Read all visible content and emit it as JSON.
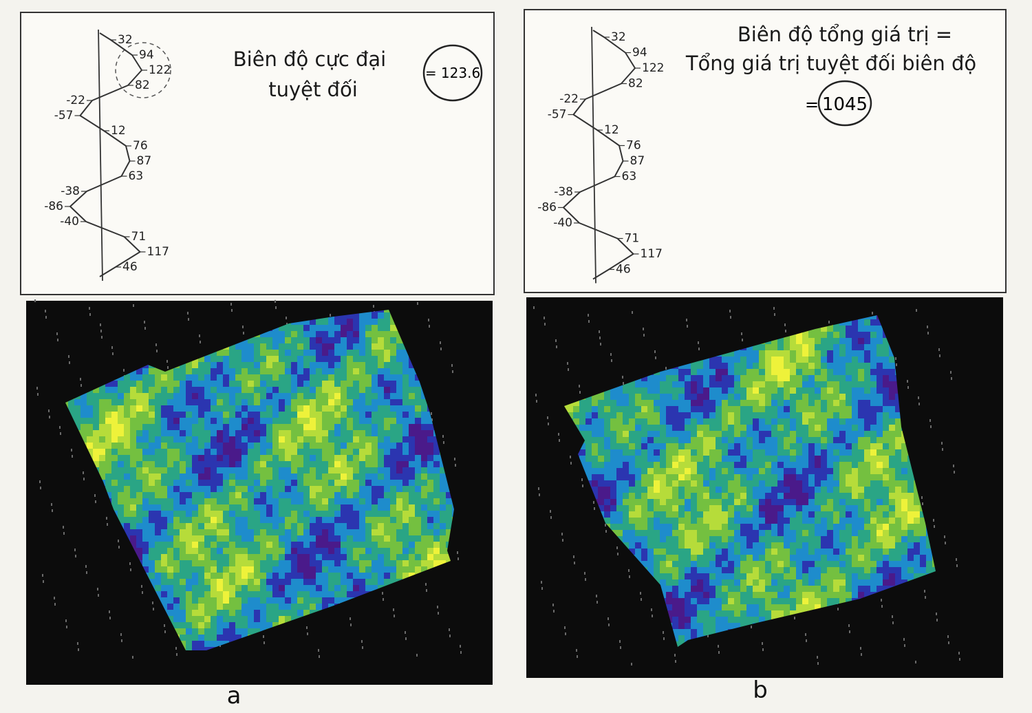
{
  "panels": [
    {
      "trace_labels": [
        32,
        94,
        122,
        82,
        -22,
        -57,
        12,
        76,
        87,
        63,
        -38,
        -86,
        -40,
        71,
        117,
        46
      ],
      "title_lines": [
        "Biên độ cực đại",
        "tuyệt đối"
      ],
      "result": "= 123.6",
      "caption": "a"
    },
    {
      "trace_labels": [
        32,
        94,
        122,
        82,
        -22,
        -57,
        12,
        76,
        87,
        63,
        -38,
        -86,
        -40,
        71,
        117,
        46
      ],
      "title_lines": [
        "Biên độ tổng giá trị =",
        "Tổng giá trị tuyệt đối biên độ"
      ],
      "result_prefix": "=",
      "result": "1045",
      "caption": "b"
    }
  ]
}
